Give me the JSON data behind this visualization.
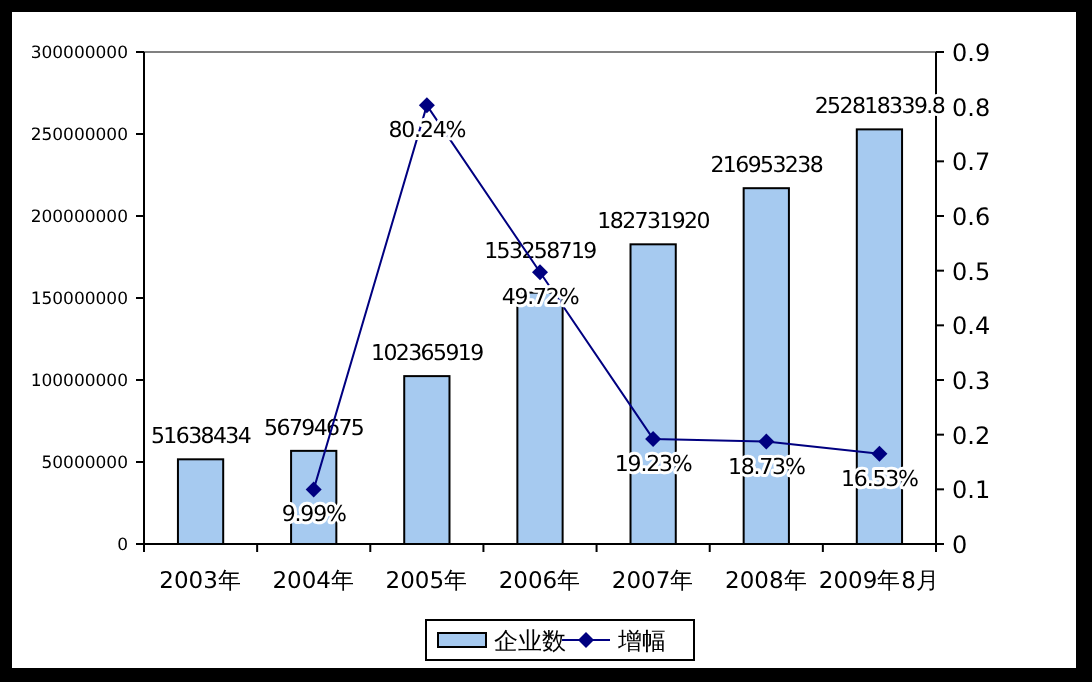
{
  "chart_data": {
    "type": "bar",
    "categories": [
      "2003年",
      "2004年",
      "2005年",
      "2006年",
      "2007年",
      "2008年",
      "2009年8月"
    ],
    "series": [
      {
        "name": "企业数",
        "color": "#a6caf0",
        "values": [
          51638434,
          56794675,
          102365919,
          153258719,
          182731920,
          216953238,
          252818339.8
        ],
        "value_labels": [
          "51638434",
          "56794675",
          "102365919",
          "153258719",
          "182731920",
          "216953238",
          "252818339.8"
        ]
      },
      {
        "name": "增幅",
        "type": "line",
        "axis": "y2",
        "color": "#000080",
        "values": [
          null,
          0.0999,
          0.8024,
          0.4972,
          0.1923,
          0.1873,
          0.1653
        ],
        "value_labels": [
          null,
          "9.99%",
          "80.24%",
          "49.72%",
          "19.23%",
          "18.73%",
          "16.53%"
        ]
      }
    ],
    "ylim": [
      0,
      300000000
    ],
    "yticks": [
      0,
      50000000,
      100000000,
      150000000,
      200000000,
      250000000,
      300000000
    ],
    "y2lim": [
      0,
      0.9
    ],
    "y2ticks": [
      0,
      0.1,
      0.2,
      0.3,
      0.4,
      0.5,
      0.6,
      0.7,
      0.8,
      0.9
    ],
    "legend": "bottom",
    "marker": "diamond"
  }
}
